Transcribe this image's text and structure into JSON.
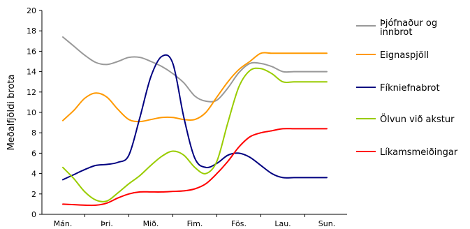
{
  "chart_data": {
    "type": "line",
    "title": "",
    "xlabel": "",
    "ylabel": "Meðalfjöldi brota",
    "ylim": [
      0,
      20
    ],
    "yticks": [
      0,
      2,
      4,
      6,
      8,
      10,
      12,
      14,
      16,
      18,
      20
    ],
    "x": [
      0,
      0.25,
      0.5,
      0.75,
      1,
      1.25,
      1.5,
      1.75,
      2,
      2.25,
      2.5,
      2.75,
      3,
      3.25,
      3.5,
      3.75,
      4,
      4.25,
      4.5,
      4.75,
      5,
      5.25,
      5.5,
      5.75,
      6
    ],
    "categories": [
      "Mán.",
      "Þri.",
      "Mið.",
      "Fim.",
      "Fös.",
      "Lau.",
      "Sun."
    ],
    "grid": false,
    "legend_position": "right",
    "series": [
      {
        "name": "Þjófnaður og innbrot",
        "color": "#999999",
        "values": [
          17.4,
          16.5,
          15.6,
          14.9,
          14.7,
          15.0,
          15.4,
          15.4,
          15.0,
          14.5,
          13.8,
          12.9,
          11.6,
          11.1,
          11.2,
          12.4,
          13.9,
          14.8,
          14.8,
          14.5,
          14.0,
          14.0,
          14.0,
          14.0,
          14.0
        ]
      },
      {
        "name": "Eignaspjöll",
        "color": "#ff9900",
        "values": [
          9.2,
          10.2,
          11.4,
          11.9,
          11.5,
          10.3,
          9.3,
          9.1,
          9.3,
          9.5,
          9.5,
          9.3,
          9.3,
          10.0,
          11.5,
          13.0,
          14.2,
          15.0,
          15.8,
          15.8,
          15.8,
          15.8,
          15.8,
          15.8,
          15.8
        ]
      },
      {
        "name": "Fíkniefnabrot",
        "color": "#000080",
        "values": [
          3.4,
          3.9,
          4.4,
          4.8,
          4.9,
          5.1,
          5.8,
          9.5,
          13.5,
          15.5,
          14.8,
          9.5,
          5.5,
          4.6,
          5.0,
          5.8,
          6.0,
          5.6,
          4.8,
          4.0,
          3.6,
          3.6,
          3.6,
          3.6,
          3.6
        ]
      },
      {
        "name": "Ölvun við akstur",
        "color": "#99cc00",
        "values": [
          4.6,
          3.5,
          2.2,
          1.4,
          1.3,
          2.1,
          3.0,
          3.8,
          4.8,
          5.7,
          6.2,
          5.8,
          4.6,
          4.0,
          5.2,
          9.0,
          12.5,
          14.1,
          14.3,
          13.8,
          13.0,
          13.0,
          13.0,
          13.0,
          13.0
        ]
      },
      {
        "name": "Líkamsmeiðingar",
        "color": "#ff0000",
        "values": [
          1.0,
          0.95,
          0.9,
          0.9,
          1.1,
          1.6,
          2.0,
          2.2,
          2.2,
          2.2,
          2.25,
          2.3,
          2.5,
          3.0,
          4.0,
          5.2,
          6.6,
          7.6,
          8.0,
          8.2,
          8.4,
          8.4,
          8.4,
          8.4,
          8.4
        ]
      }
    ]
  }
}
